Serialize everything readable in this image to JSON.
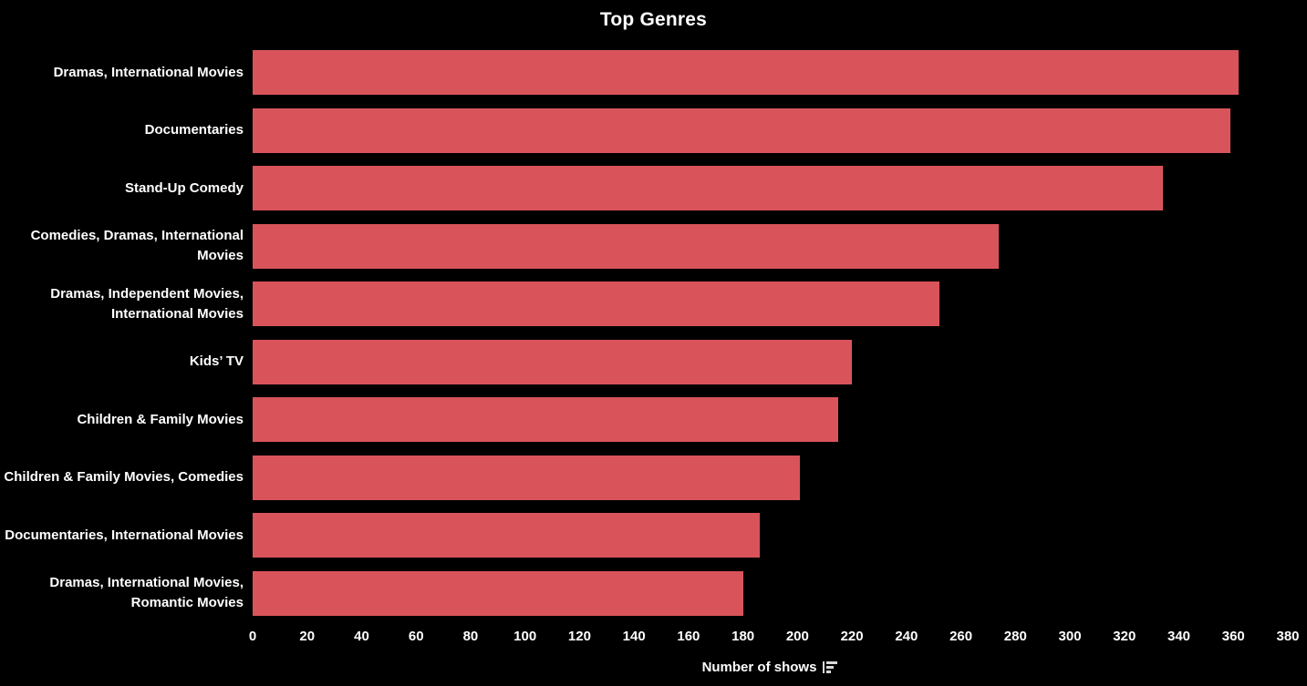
{
  "header": {
    "title": "Top Genres"
  },
  "axis": {
    "xlabel": "Number of shows",
    "ticks": [
      0,
      20,
      40,
      60,
      80,
      100,
      120,
      140,
      160,
      180,
      200,
      220,
      240,
      260,
      280,
      300,
      320,
      340,
      360,
      380
    ],
    "max": 380
  },
  "icons": {
    "sort_icon": "sort-descending-icon"
  },
  "colors": {
    "background": "#000000",
    "bar": "#d9545a",
    "text": "#ffffff",
    "icon": "#d9d9d9"
  },
  "chart_data": {
    "type": "bar",
    "orientation": "horizontal",
    "title": "Top Genres",
    "xlabel": "Number of shows",
    "ylabel": "",
    "xlim": [
      0,
      380
    ],
    "tick_interval": 20,
    "grid": false,
    "legend": false,
    "sort": "descending",
    "categories": [
      "Dramas, International Movies",
      "Documentaries",
      "Stand-Up Comedy",
      "Comedies, Dramas, International Movies",
      "Dramas, Independent Movies, International Movies",
      "Kids’ TV",
      "Children & Family Movies",
      "Children & Family Movies, Comedies",
      "Documentaries, International Movies",
      "Dramas, International Movies, Romantic Movies"
    ],
    "values": [
      362,
      359,
      334,
      274,
      252,
      220,
      215,
      201,
      186,
      180
    ]
  }
}
